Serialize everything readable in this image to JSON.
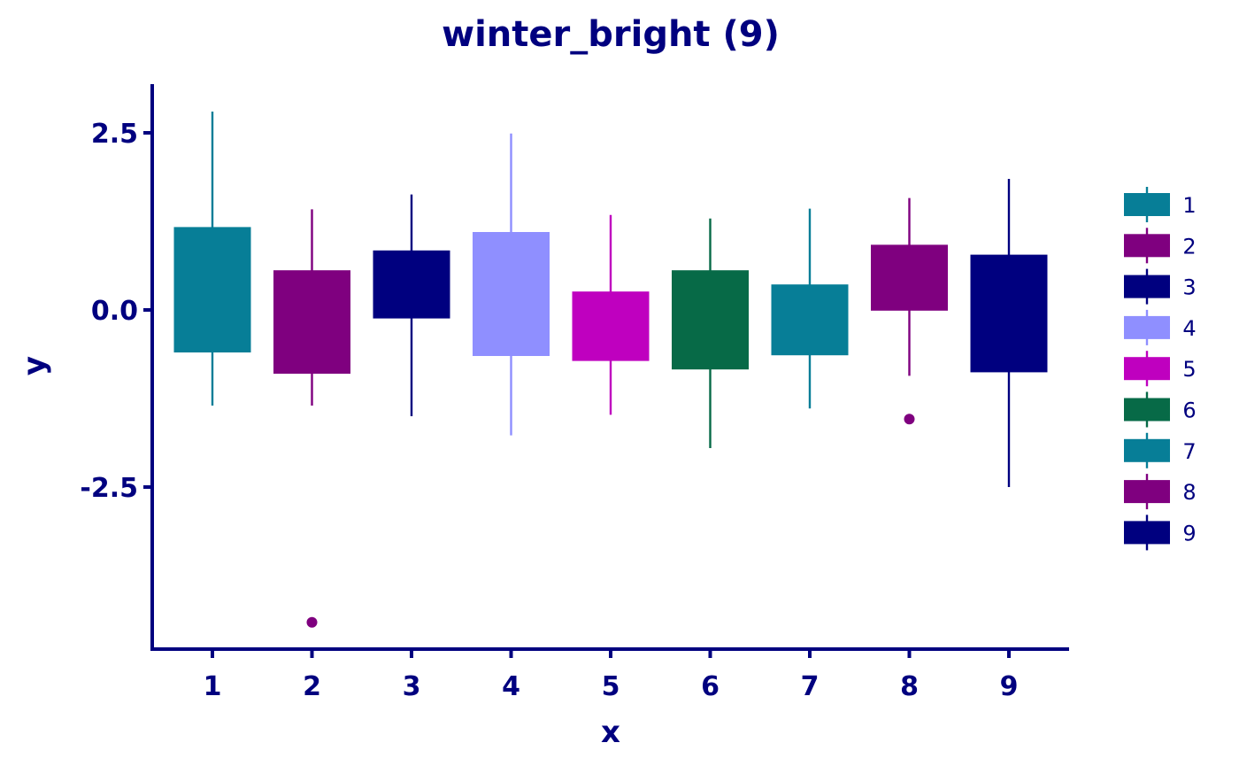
{
  "chart_data": {
    "type": "box",
    "title": "winter_bright (9)",
    "xlabel": "x",
    "ylabel": "y",
    "ylim": [
      -4.75,
      3.2
    ],
    "yticks": [
      2.5,
      0.0,
      -2.5
    ],
    "ytick_labels": [
      "2.5",
      "0.0",
      "-2.5"
    ],
    "categories": [
      "1",
      "2",
      "3",
      "4",
      "5",
      "6",
      "7",
      "8",
      "9"
    ],
    "legend_position": "right",
    "colors": {
      "text": "#00007f",
      "axis": "#00007f"
    },
    "series": [
      {
        "name": "1",
        "color": "#077e97",
        "whisker_low": -1.35,
        "q1": -0.6,
        "q3": 1.17,
        "whisker_high": 2.8,
        "outliers": []
      },
      {
        "name": "2",
        "color": "#7f007f",
        "whisker_low": -1.35,
        "q1": -0.9,
        "q3": 0.56,
        "whisker_high": 1.42,
        "outliers": [
          -4.41
        ]
      },
      {
        "name": "3",
        "color": "#00007f",
        "whisker_low": -1.5,
        "q1": -0.12,
        "q3": 0.84,
        "whisker_high": 1.63,
        "outliers": []
      },
      {
        "name": "4",
        "color": "#8f8fff",
        "whisker_low": -1.77,
        "q1": -0.65,
        "q3": 1.1,
        "whisker_high": 2.49,
        "outliers": []
      },
      {
        "name": "5",
        "color": "#bf00bf",
        "whisker_low": -1.48,
        "q1": -0.72,
        "q3": 0.26,
        "whisker_high": 1.34,
        "outliers": []
      },
      {
        "name": "6",
        "color": "#076a47",
        "whisker_low": -1.95,
        "q1": -0.84,
        "q3": 0.56,
        "whisker_high": 1.29,
        "outliers": []
      },
      {
        "name": "7",
        "color": "#077e97",
        "whisker_low": -1.39,
        "q1": -0.64,
        "q3": 0.36,
        "whisker_high": 1.43,
        "outliers": []
      },
      {
        "name": "8",
        "color": "#7f007f",
        "whisker_low": -0.93,
        "q1": -0.01,
        "q3": 0.92,
        "whisker_high": 1.58,
        "outliers": [
          -1.54
        ]
      },
      {
        "name": "9",
        "color": "#00007f",
        "whisker_low": -2.5,
        "q1": -0.88,
        "q3": 0.78,
        "whisker_high": 1.85,
        "outliers": []
      }
    ]
  }
}
